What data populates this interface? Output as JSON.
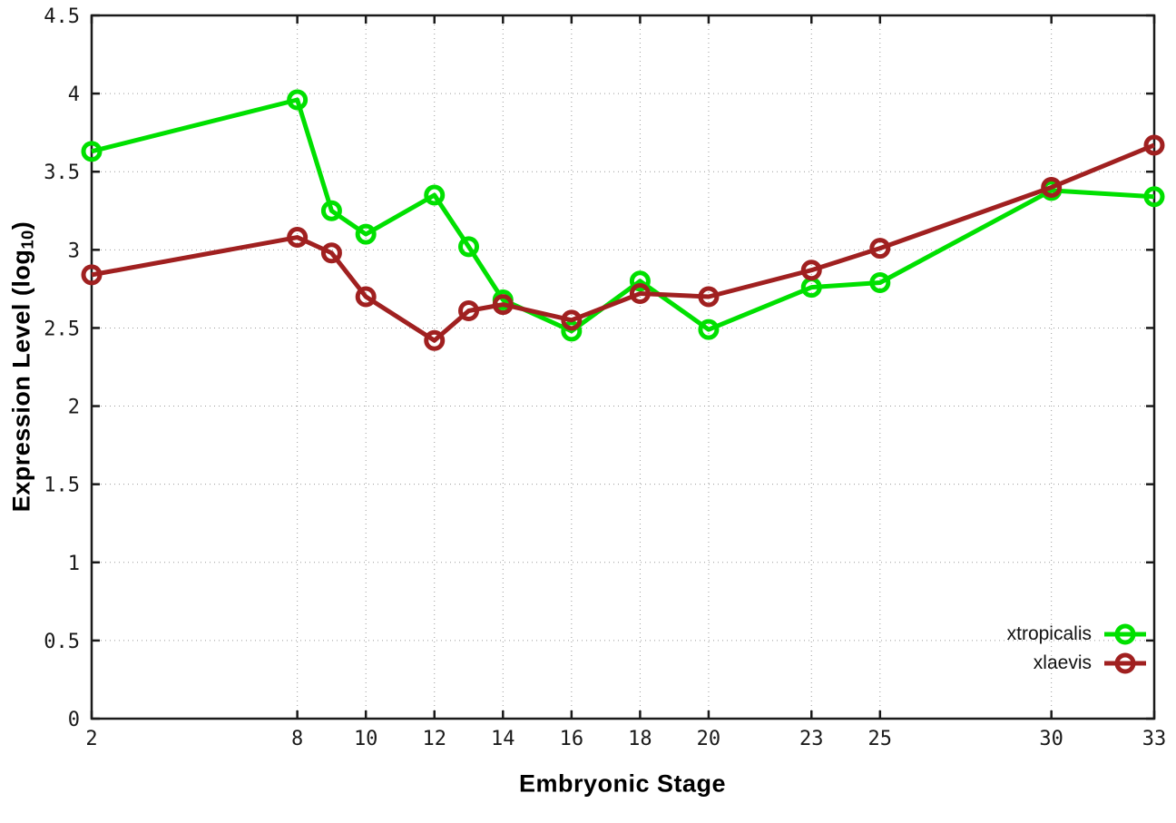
{
  "chart_data": {
    "type": "line",
    "title": "",
    "xlabel": "Embryonic Stage",
    "ylabel": {
      "text": "Expression Level (log",
      "sub": "10",
      "suffix": ")"
    },
    "xlim": [
      2,
      33
    ],
    "ylim": [
      0,
      4.5
    ],
    "grid": "dotted",
    "legend_position": "inside-bottom-right",
    "xticks": {
      "values": [
        2,
        8,
        10,
        12,
        14,
        16,
        18,
        20,
        23,
        25,
        30,
        33
      ],
      "labels": [
        "2",
        "8",
        "10",
        "12",
        "14",
        "16",
        "18",
        "20",
        "23",
        "25",
        "30",
        "33"
      ]
    },
    "yticks": {
      "values": [
        0,
        0.5,
        1,
        1.5,
        2,
        2.5,
        3,
        3.5,
        4,
        4.5
      ],
      "labels": [
        "0",
        "0.5",
        "1",
        "1.5",
        "2",
        "2.5",
        "3",
        "3.5",
        "4",
        "4.5"
      ]
    },
    "x": [
      2,
      8,
      9,
      10,
      12,
      13,
      14,
      16,
      18,
      20,
      23,
      25,
      30,
      33
    ],
    "series": [
      {
        "name": "xtropicalis",
        "color": "#00E000",
        "marker": "open-circle",
        "values": [
          3.63,
          3.96,
          3.25,
          3.1,
          3.35,
          3.02,
          2.68,
          2.48,
          2.8,
          2.49,
          2.76,
          2.79,
          3.38,
          3.34
        ]
      },
      {
        "name": "xlaevis",
        "color": "#A02020",
        "marker": "open-circle",
        "values": [
          2.84,
          3.08,
          2.98,
          2.7,
          2.42,
          2.61,
          2.65,
          2.55,
          2.72,
          2.7,
          2.87,
          3.01,
          3.4,
          3.67
        ]
      }
    ],
    "style": {
      "border_color": "#1a1a1a",
      "grid_color": "#9a9a9a",
      "tick_label_color": "#1a1a1a"
    }
  }
}
